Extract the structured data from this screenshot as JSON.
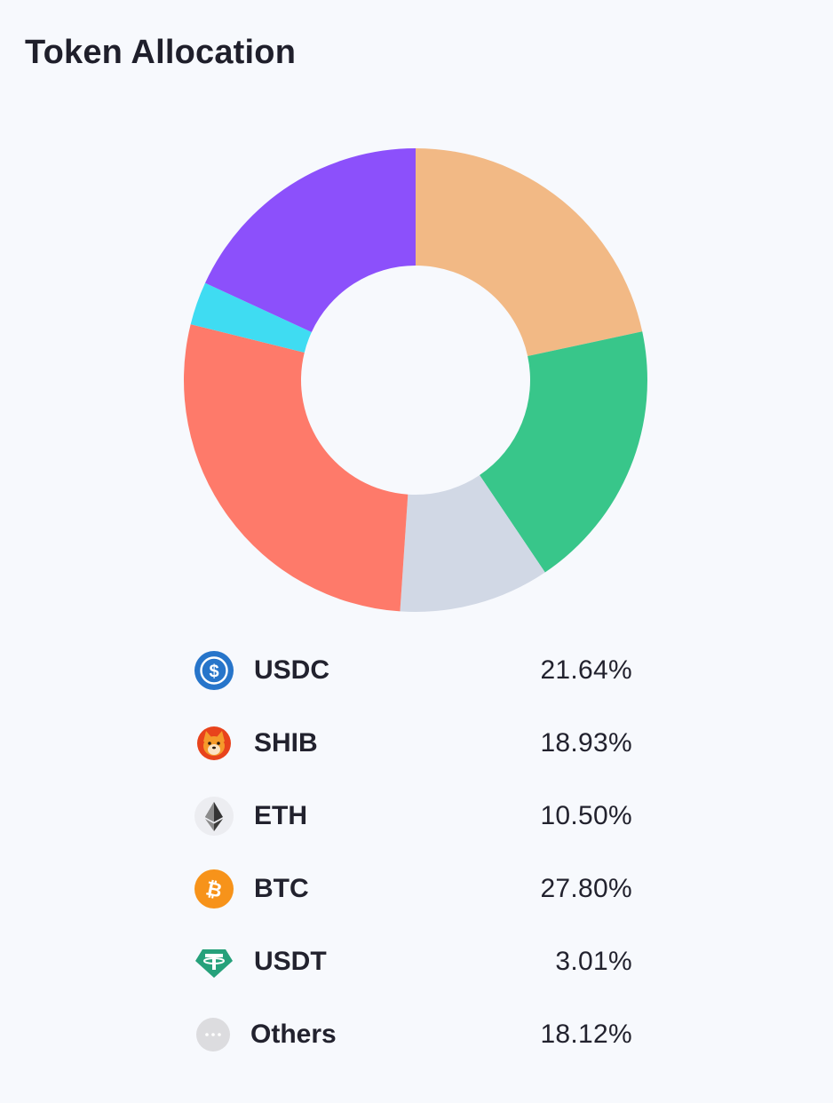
{
  "header": {
    "title": "Token Allocation"
  },
  "chart_data": {
    "type": "pie",
    "donut": true,
    "start_angle_deg": 0,
    "direction": "clockwise",
    "slices": [
      {
        "label": "USDC",
        "value": 21.64,
        "display": "21.64%",
        "color": "#f2b985"
      },
      {
        "label": "SHIB",
        "value": 18.93,
        "display": "18.93%",
        "color": "#38c68a"
      },
      {
        "label": "ETH",
        "value": 10.5,
        "display": "10.50%",
        "color": "#d1d8e5"
      },
      {
        "label": "BTC",
        "value": 27.8,
        "display": "27.80%",
        "color": "#fe7a6a"
      },
      {
        "label": "USDT",
        "value": 3.01,
        "display": "3.01%",
        "color": "#3fdcf2"
      },
      {
        "label": "Others",
        "value": 18.12,
        "display": "18.12%",
        "color": "#8c50fb"
      }
    ]
  },
  "legend": {
    "items": [
      {
        "name": "USDC",
        "percent": "21.64%",
        "icon": "usdc-icon"
      },
      {
        "name": "SHIB",
        "percent": "18.93%",
        "icon": "shib-icon"
      },
      {
        "name": "ETH",
        "percent": "10.50%",
        "icon": "eth-icon"
      },
      {
        "name": "BTC",
        "percent": "27.80%",
        "icon": "btc-icon"
      },
      {
        "name": "USDT",
        "percent": "3.01%",
        "icon": "usdt-icon"
      },
      {
        "name": "Others",
        "percent": "18.12%",
        "icon": "more-dots-icon"
      }
    ]
  }
}
